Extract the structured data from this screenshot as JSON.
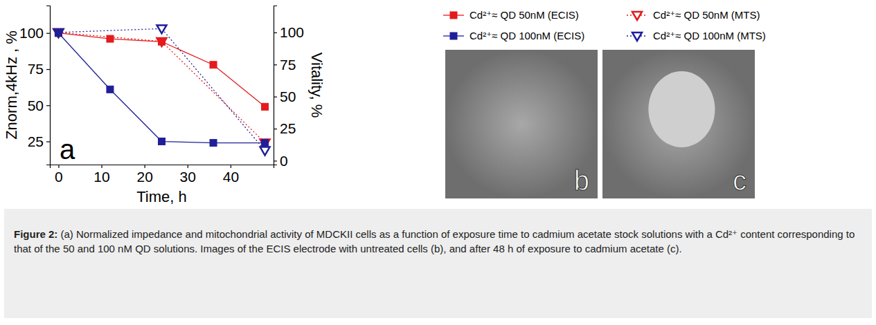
{
  "chart_data": {
    "type": "line",
    "xlabel": "Time, h",
    "ylabel": "Znorm,4kHz , %",
    "y2label": "Vitality, %",
    "panel_label": "a",
    "xlim": [
      -2,
      50
    ],
    "xticks": [
      0,
      10,
      20,
      30,
      40
    ],
    "ylim": [
      9,
      119
    ],
    "yticks": [
      25,
      50,
      75,
      100
    ],
    "y2lim": [
      -3,
      121
    ],
    "y2ticks": [
      0,
      25,
      50,
      75,
      100
    ],
    "legend": "right",
    "series": [
      {
        "name": "Cd²⁺≈ QD 50nM (ECIS)",
        "color": "#e41a1c",
        "marker": "square",
        "line_style": "solid",
        "x": [
          0,
          12,
          24,
          36,
          48
        ],
        "values": [
          100,
          96,
          94,
          78,
          49
        ]
      },
      {
        "name": "Cd²⁺≈ QD 100nM (ECIS)",
        "color": "#1f1f9a",
        "marker": "square",
        "line_style": "solid",
        "x": [
          0,
          12,
          24,
          36,
          48
        ],
        "values": [
          100,
          61,
          25,
          24,
          24
        ]
      },
      {
        "name": "Cd²⁺≈ QD 50nM (MTS)",
        "color": "#e41a1c",
        "marker": "triangle-down-open",
        "line_style": "dotted",
        "axis": "y2",
        "x": [
          0,
          24,
          48
        ],
        "values": [
          100,
          93,
          14
        ]
      },
      {
        "name": "Cd²⁺≈ QD 100nM (MTS)",
        "color": "#1f1f9a",
        "marker": "triangle-down-open",
        "line_style": "dotted",
        "axis": "y2",
        "x": [
          0,
          24,
          48
        ],
        "values": [
          100,
          103,
          8
        ]
      }
    ]
  },
  "figure": {
    "panels": [
      {
        "label": "b"
      },
      {
        "label": "c"
      }
    ],
    "caption_label": "Figure 2:",
    "caption": "(a) Normalized impedance and mitochondrial activity of MDCKII cells as a function of exposure time to cadmium acetate stock solutions with a Cd²⁺ content corresponding to that of the 50 and 100 nM QD solutions. Images of the ECIS electrode with untreated cells (b), and after 48 h of exposure to cadmium acetate (c)."
  }
}
